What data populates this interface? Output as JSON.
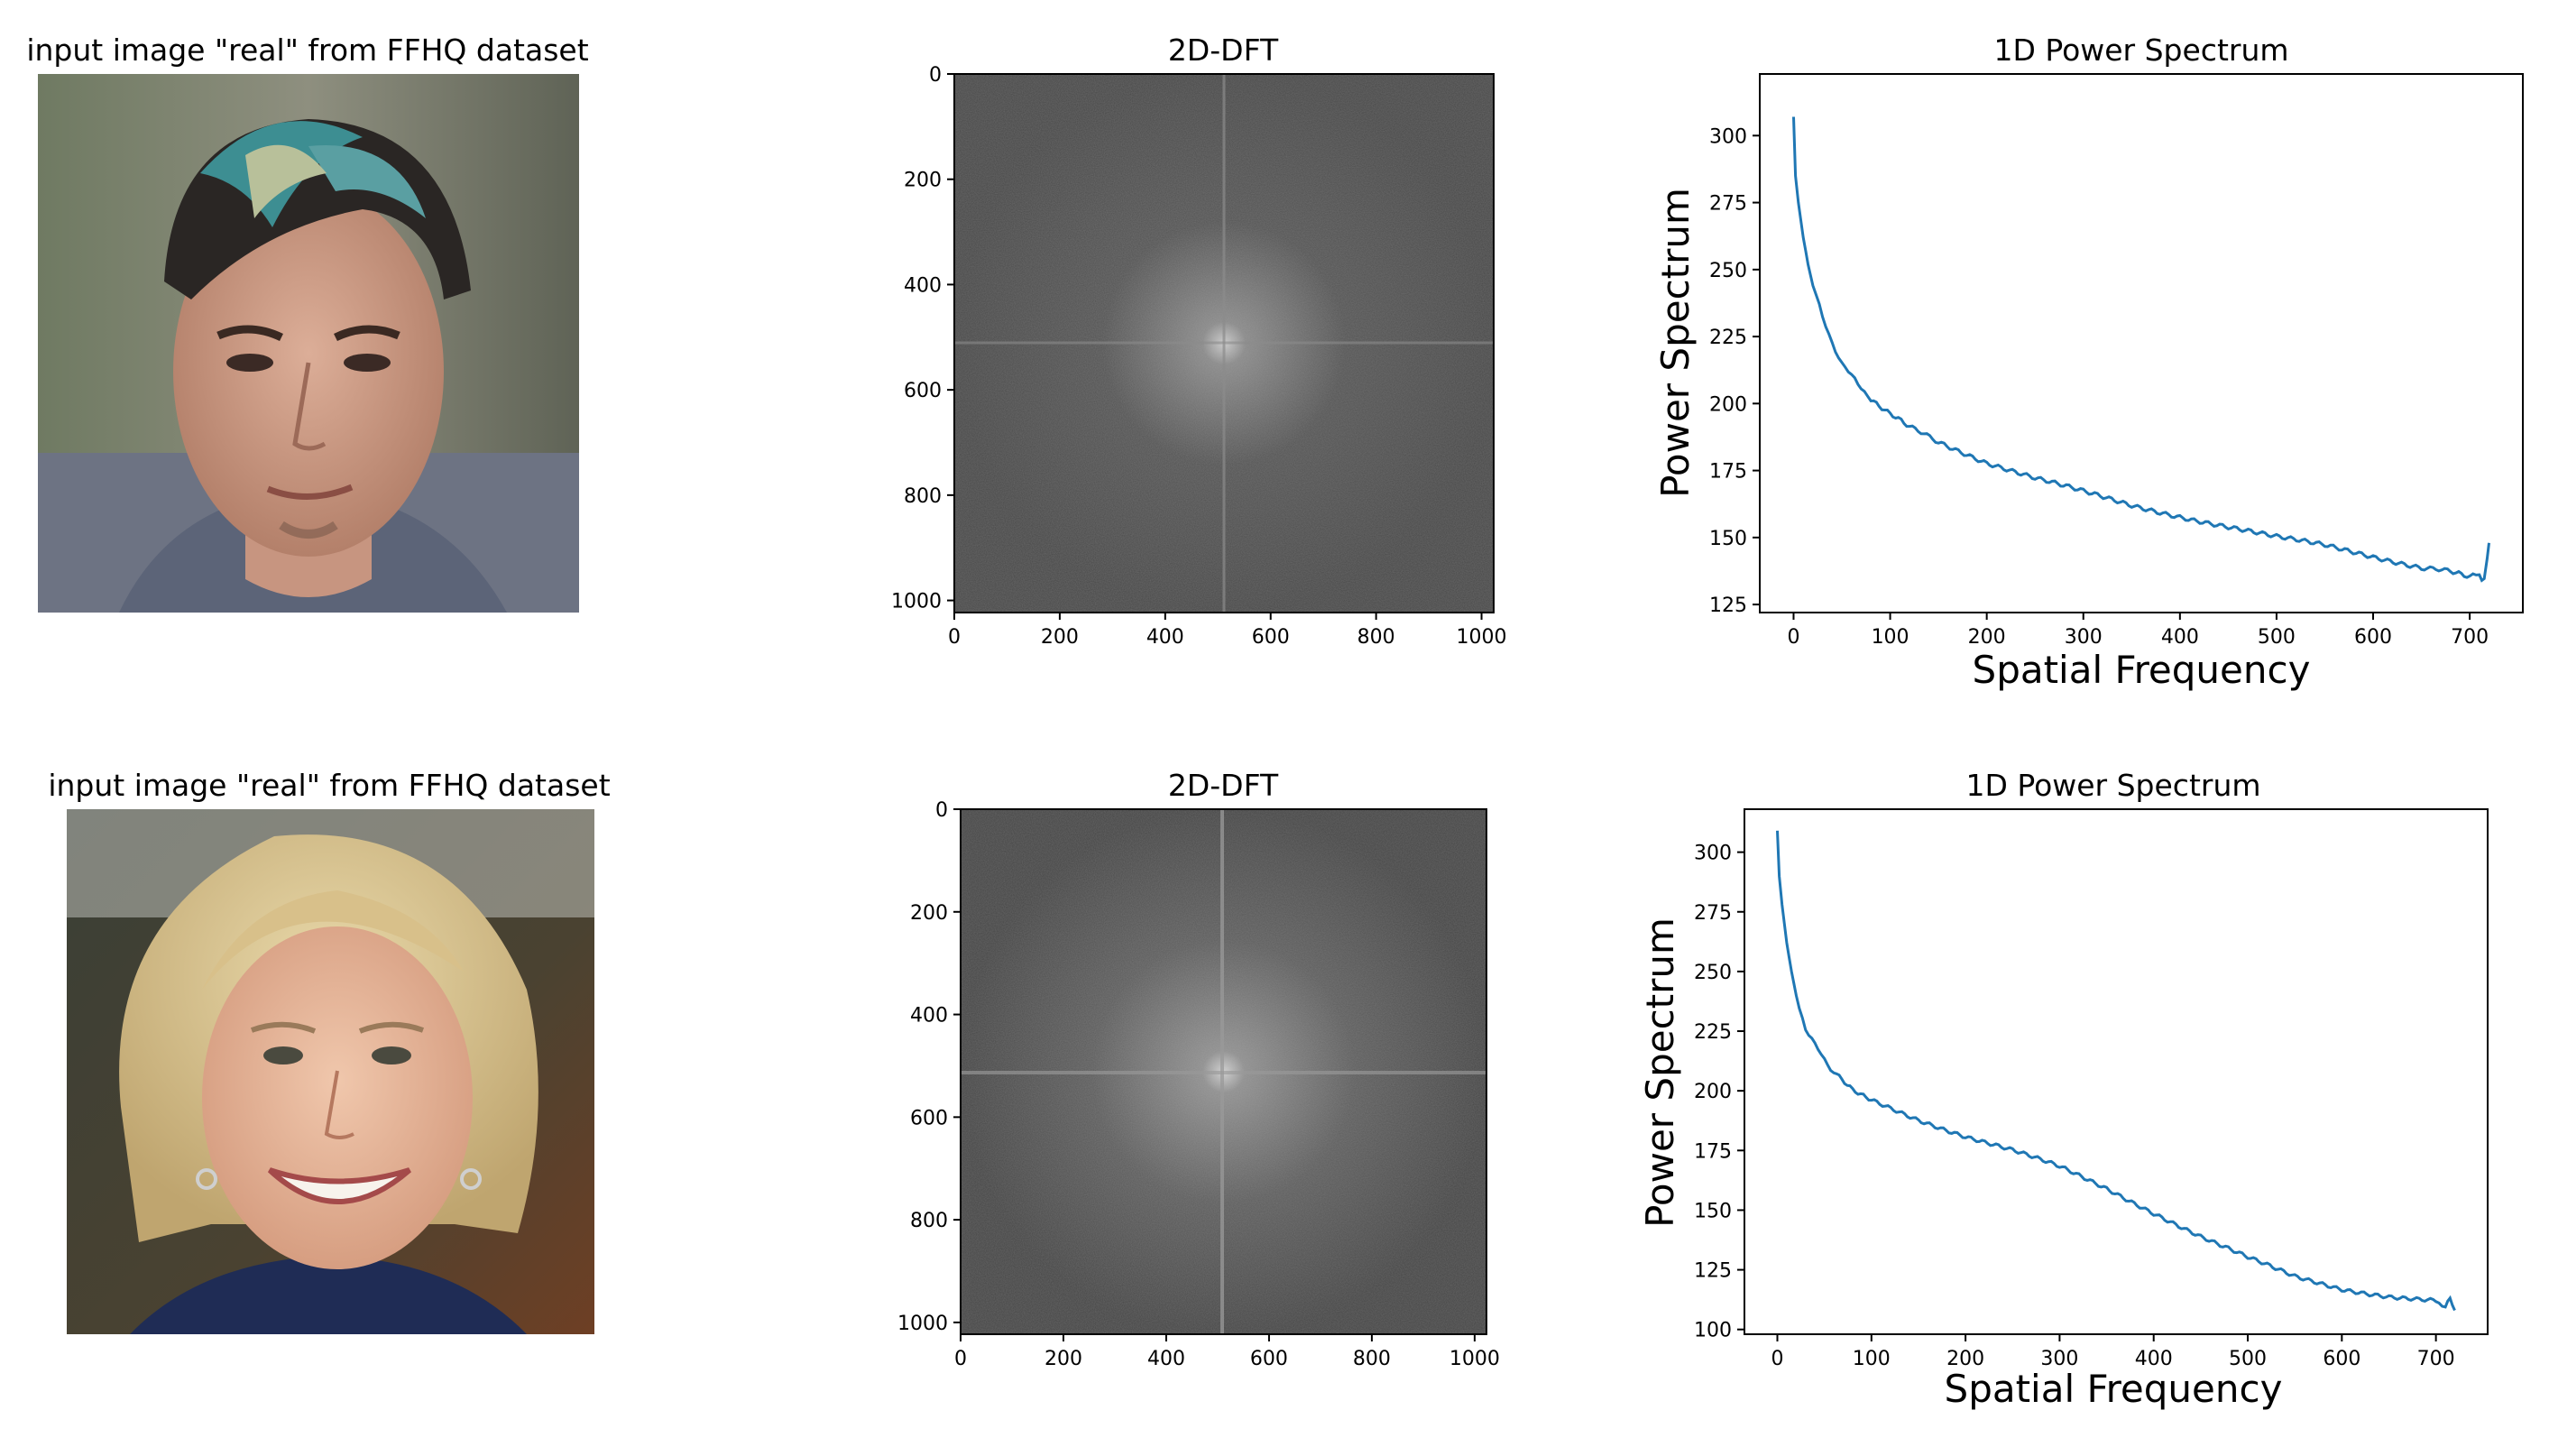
{
  "panels": [
    {
      "photo_title": "input image \"real\" from FFHQ dataset",
      "dft": {
        "title": "2D-DFT",
        "xticks": [
          "0",
          "200",
          "400",
          "600",
          "800",
          "1000"
        ],
        "yticks": [
          "0",
          "200",
          "400",
          "600",
          "800",
          "1000"
        ],
        "xlim": [
          0,
          1023
        ],
        "ylim": [
          0,
          1023
        ]
      }
    },
    {
      "photo_title": "input image \"real\" from FFHQ dataset",
      "dft": {
        "title": "2D-DFT",
        "xticks": [
          "0",
          "200",
          "400",
          "600",
          "800",
          "1000"
        ],
        "yticks": [
          "0",
          "200",
          "400",
          "600",
          "800",
          "1000"
        ],
        "xlim": [
          0,
          1023
        ],
        "ylim": [
          0,
          1023
        ]
      }
    }
  ],
  "chart_data": [
    {
      "type": "line",
      "title": "1D Power Spectrum",
      "xlabel": "Spatial Frequency",
      "ylabel": "Power Spectrum",
      "xlim": [
        -35,
        755
      ],
      "ylim": [
        122,
        323
      ],
      "xticks": [
        0,
        100,
        200,
        300,
        400,
        500,
        600,
        700
      ],
      "yticks": [
        125,
        150,
        175,
        200,
        225,
        250,
        275,
        300
      ],
      "color": "#1f77b4",
      "x": [
        0,
        2,
        5,
        10,
        15,
        20,
        30,
        40,
        50,
        60,
        70,
        80,
        100,
        120,
        150,
        200,
        250,
        300,
        350,
        400,
        450,
        500,
        550,
        600,
        650,
        680,
        700,
        710,
        715,
        718,
        720
      ],
      "y": [
        307,
        285,
        275,
        262,
        252,
        244,
        232,
        223,
        215,
        210,
        206,
        202,
        196,
        191,
        186,
        178,
        172,
        167,
        162,
        158,
        154,
        150,
        147,
        143,
        139,
        137,
        135,
        136,
        134,
        141,
        148
      ]
    },
    {
      "type": "line",
      "title": "1D Power Spectrum",
      "xlabel": "Spatial Frequency",
      "ylabel": "Power Spectrum",
      "xlim": [
        -35,
        755
      ],
      "ylim": [
        98,
        318
      ],
      "xticks": [
        0,
        100,
        200,
        300,
        400,
        500,
        600,
        700
      ],
      "yticks": [
        100,
        125,
        150,
        175,
        200,
        225,
        250,
        275,
        300
      ],
      "color": "#1f77b4",
      "x": [
        0,
        2,
        5,
        10,
        15,
        20,
        30,
        40,
        50,
        60,
        80,
        100,
        150,
        200,
        250,
        300,
        350,
        400,
        450,
        500,
        550,
        600,
        650,
        700,
        710,
        715,
        720
      ],
      "y": [
        309,
        290,
        278,
        262,
        250,
        240,
        226,
        219,
        213,
        208,
        201,
        196,
        188,
        181,
        175,
        168,
        159,
        149,
        139,
        130,
        122,
        117,
        114,
        112,
        110,
        113,
        108
      ]
    }
  ]
}
